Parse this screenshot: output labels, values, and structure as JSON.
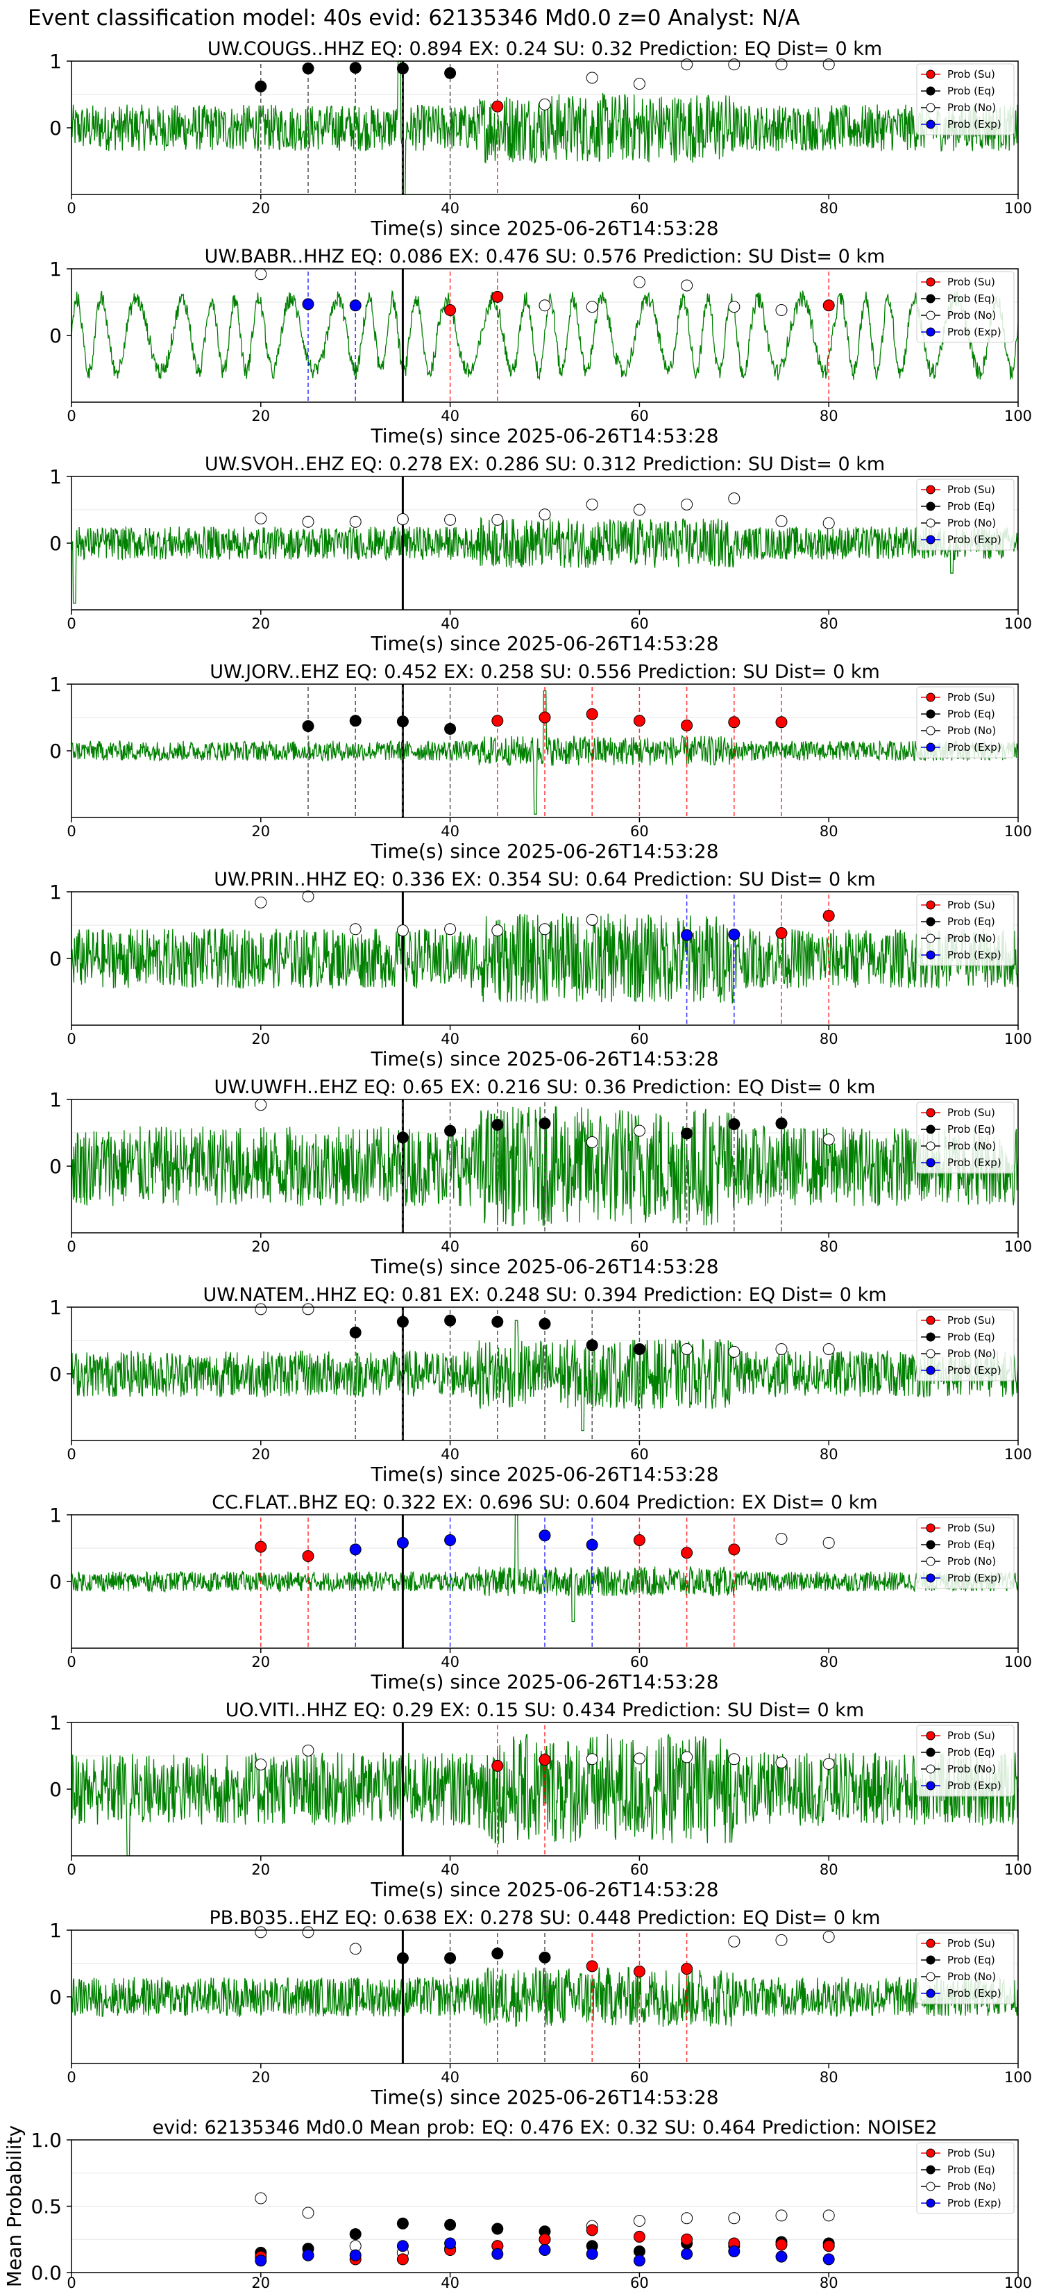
{
  "suptitle": "Event classification model: 40s evid: 62135346 Md0.0 z=0 Analyst: N/A",
  "legend_labels": [
    "Prob (Su)",
    "Prob (Eq)",
    "Prob (No)",
    "Prob (Exp)"
  ],
  "colors": {
    "waveform": "#008000",
    "su": "#ff0000",
    "eq": "#000000",
    "no": "#ffffff",
    "exp": "#0000ff",
    "su_line": "#ff0000",
    "eq_line": "#555555",
    "exp_line": "#0000ff"
  },
  "chart_data": [
    {
      "type": "line",
      "title": "UW.COUGS..HHZ   EQ: 0.894  EX: 0.24  SU: 0.32   Prediction: EQ    Dist= 0 km",
      "xlabel": "Time(s) since 2025-06-26T14:53:28",
      "xlim": [
        0,
        100
      ],
      "ylim": [
        -1,
        1
      ],
      "xticks": [
        0,
        20,
        40,
        60,
        80,
        100
      ],
      "yticks": [
        0,
        1
      ],
      "onset": 35,
      "amp": 0.35,
      "spikes": [
        [
          34.6,
          1.0
        ],
        [
          35.1,
          -1.0
        ]
      ],
      "su": [
        [
          45,
          0.32
        ]
      ],
      "eq": [
        [
          20,
          0.62
        ],
        [
          25,
          0.89
        ],
        [
          30,
          0.9
        ],
        [
          35,
          0.89
        ],
        [
          40,
          0.82
        ]
      ],
      "no": [
        [
          50,
          0.35
        ],
        [
          55,
          0.75
        ],
        [
          60,
          0.66
        ],
        [
          65,
          0.95
        ],
        [
          70,
          0.95
        ],
        [
          75,
          0.95
        ],
        [
          80,
          0.95
        ]
      ],
      "exp": [],
      "eq_lines": [
        20,
        25,
        30,
        35,
        40
      ],
      "su_lines": [
        45
      ],
      "exp_lines": []
    },
    {
      "type": "line",
      "title": "UW.BABR..HHZ   EQ: 0.086  EX: 0.476  SU: 0.576   Prediction: SU    Dist= 0 km",
      "xlabel": "Time(s) since 2025-06-26T14:53:28",
      "xlim": [
        0,
        100
      ],
      "ylim": [
        -1,
        1
      ],
      "xticks": [
        0,
        20,
        40,
        60,
        80,
        100
      ],
      "yticks": [
        0,
        1
      ],
      "onset": 35,
      "amp": 0.7,
      "spikes": [],
      "su": [
        [
          40,
          0.38
        ],
        [
          45,
          0.58
        ],
        [
          80,
          0.45
        ]
      ],
      "eq": [],
      "no": [
        [
          20,
          0.92
        ],
        [
          50,
          0.45
        ],
        [
          55,
          0.43
        ],
        [
          60,
          0.8
        ],
        [
          65,
          0.75
        ],
        [
          70,
          0.43
        ],
        [
          75,
          0.38
        ]
      ],
      "exp": [
        [
          25,
          0.47
        ],
        [
          30,
          0.45
        ]
      ],
      "eq_lines": [],
      "su_lines": [
        40,
        45,
        80
      ],
      "exp_lines": [
        25,
        30
      ]
    },
    {
      "type": "line",
      "title": "UW.SVOH..EHZ   EQ: 0.278  EX: 0.286  SU: 0.312   Prediction: SU    Dist= 0 km",
      "xlabel": "Time(s) since 2025-06-26T14:53:28",
      "xlim": [
        0,
        100
      ],
      "ylim": [
        -1,
        1
      ],
      "xticks": [
        0,
        20,
        40,
        60,
        80,
        100
      ],
      "yticks": [
        0,
        1
      ],
      "onset": 35,
      "amp": 0.25,
      "spikes": [
        [
          0.3,
          -0.9
        ],
        [
          93,
          -0.45
        ]
      ],
      "su": [],
      "eq": [],
      "no": [
        [
          20,
          0.37
        ],
        [
          25,
          0.32
        ],
        [
          30,
          0.32
        ],
        [
          35,
          0.36
        ],
        [
          40,
          0.35
        ],
        [
          45,
          0.35
        ],
        [
          50,
          0.43
        ],
        [
          55,
          0.58
        ],
        [
          60,
          0.5
        ],
        [
          65,
          0.58
        ],
        [
          70,
          0.67
        ],
        [
          75,
          0.33
        ],
        [
          80,
          0.3
        ]
      ],
      "exp": [],
      "eq_lines": [],
      "su_lines": [],
      "exp_lines": []
    },
    {
      "type": "line",
      "title": "UW.JORV..EHZ   EQ: 0.452  EX: 0.258  SU: 0.556   Prediction: SU    Dist= 0 km",
      "xlabel": "Time(s) since 2025-06-26T14:53:28",
      "xlim": [
        0,
        100
      ],
      "ylim": [
        -1,
        1
      ],
      "xticks": [
        0,
        20,
        40,
        60,
        80,
        100
      ],
      "yticks": [
        0,
        1
      ],
      "onset": 35,
      "amp": 0.15,
      "spikes": [
        [
          49,
          -0.95
        ],
        [
          50,
          0.9
        ]
      ],
      "su": [
        [
          45,
          0.45
        ],
        [
          50,
          0.5
        ],
        [
          55,
          0.55
        ],
        [
          60,
          0.45
        ],
        [
          65,
          0.38
        ],
        [
          70,
          0.43
        ],
        [
          75,
          0.43
        ]
      ],
      "eq": [
        [
          25,
          0.37
        ],
        [
          30,
          0.45
        ],
        [
          35,
          0.44
        ],
        [
          40,
          0.33
        ]
      ],
      "no": [],
      "exp": [],
      "eq_lines": [
        25,
        30,
        35,
        40
      ],
      "su_lines": [
        45,
        50,
        55,
        60,
        65,
        70,
        75
      ],
      "exp_lines": []
    },
    {
      "type": "line",
      "title": "UW.PRIN..HHZ   EQ: 0.336  EX: 0.354  SU: 0.64   Prediction: SU    Dist= 0 km",
      "xlabel": "Time(s) since 2025-06-26T14:53:28",
      "xlim": [
        0,
        100
      ],
      "ylim": [
        -1,
        1
      ],
      "xticks": [
        0,
        20,
        40,
        60,
        80,
        100
      ],
      "yticks": [
        0,
        1
      ],
      "onset": 35,
      "amp": 0.45,
      "spikes": [],
      "su": [
        [
          75,
          0.38
        ],
        [
          80,
          0.64
        ]
      ],
      "eq": [],
      "no": [
        [
          20,
          0.84
        ],
        [
          25,
          0.93
        ],
        [
          30,
          0.44
        ],
        [
          35,
          0.42
        ],
        [
          40,
          0.44
        ],
        [
          45,
          0.42
        ],
        [
          50,
          0.44
        ],
        [
          55,
          0.58
        ]
      ],
      "exp": [
        [
          65,
          0.35
        ],
        [
          70,
          0.36
        ]
      ],
      "eq_lines": [],
      "su_lines": [
        75,
        80
      ],
      "exp_lines": [
        65,
        70
      ]
    },
    {
      "type": "line",
      "title": "UW.UWFH..EHZ   EQ: 0.65  EX: 0.216  SU: 0.36   Prediction: EQ    Dist= 0 km",
      "xlabel": "Time(s) since 2025-06-26T14:53:28",
      "xlim": [
        0,
        100
      ],
      "ylim": [
        -1,
        1
      ],
      "xticks": [
        0,
        20,
        40,
        60,
        80,
        100
      ],
      "yticks": [
        0,
        1
      ],
      "onset": 35,
      "amp": 0.6,
      "spikes": [],
      "su": [],
      "eq": [
        [
          35,
          0.43
        ],
        [
          40,
          0.53
        ],
        [
          45,
          0.62
        ],
        [
          50,
          0.64
        ],
        [
          65,
          0.49
        ],
        [
          70,
          0.63
        ],
        [
          75,
          0.64
        ]
      ],
      "no": [
        [
          20,
          0.92
        ],
        [
          55,
          0.36
        ],
        [
          60,
          0.53
        ],
        [
          80,
          0.4
        ]
      ],
      "exp": [],
      "eq_lines": [
        35,
        40,
        45,
        50,
        65,
        70,
        75
      ],
      "su_lines": [],
      "exp_lines": []
    },
    {
      "type": "line",
      "title": "UW.NATEM..HHZ   EQ: 0.81  EX: 0.248  SU: 0.394   Prediction: EQ    Dist= 0 km",
      "xlabel": "Time(s) since 2025-06-26T14:53:28",
      "xlim": [
        0,
        100
      ],
      "ylim": [
        -1,
        1
      ],
      "xticks": [
        0,
        20,
        40,
        60,
        80,
        100
      ],
      "yticks": [
        0,
        1
      ],
      "onset": 35,
      "amp": 0.35,
      "spikes": [
        [
          47,
          0.8
        ],
        [
          54,
          -0.85
        ]
      ],
      "su": [],
      "eq": [
        [
          30,
          0.62
        ],
        [
          35,
          0.78
        ],
        [
          40,
          0.8
        ],
        [
          45,
          0.78
        ],
        [
          50,
          0.75
        ],
        [
          55,
          0.43
        ],
        [
          60,
          0.37
        ]
      ],
      "no": [
        [
          20,
          0.97
        ],
        [
          25,
          0.97
        ],
        [
          65,
          0.37
        ],
        [
          70,
          0.33
        ],
        [
          75,
          0.37
        ],
        [
          80,
          0.37
        ]
      ],
      "exp": [],
      "eq_lines": [
        30,
        35,
        40,
        45,
        50,
        55,
        60
      ],
      "su_lines": [],
      "exp_lines": []
    },
    {
      "type": "line",
      "title": "CC.FLAT..BHZ   EQ: 0.322  EX: 0.696  SU: 0.604   Prediction: EX    Dist= 0 km",
      "xlabel": "Time(s) since 2025-06-26T14:53:28",
      "xlim": [
        0,
        100
      ],
      "ylim": [
        -1,
        1
      ],
      "xticks": [
        0,
        20,
        40,
        60,
        80,
        100
      ],
      "yticks": [
        0,
        1
      ],
      "onset": 35,
      "amp": 0.15,
      "spikes": [
        [
          47,
          1.0
        ],
        [
          53,
          -0.6
        ]
      ],
      "su": [
        [
          20,
          0.52
        ],
        [
          25,
          0.38
        ],
        [
          60,
          0.62
        ],
        [
          65,
          0.43
        ],
        [
          70,
          0.48
        ]
      ],
      "eq": [],
      "no": [
        [
          75,
          0.64
        ],
        [
          80,
          0.58
        ]
      ],
      "exp": [
        [
          30,
          0.48
        ],
        [
          35,
          0.58
        ],
        [
          40,
          0.62
        ],
        [
          50,
          0.69
        ],
        [
          55,
          0.55
        ]
      ],
      "eq_lines": [],
      "su_lines": [
        20,
        25,
        60,
        65,
        70
      ],
      "exp_lines": [
        30,
        40,
        50,
        55
      ]
    },
    {
      "type": "line",
      "title": "UO.VITI..HHZ   EQ: 0.29  EX: 0.15  SU: 0.434   Prediction: SU    Dist= 0 km",
      "xlabel": "Time(s) since 2025-06-26T14:53:28",
      "xlim": [
        0,
        100
      ],
      "ylim": [
        -1,
        1
      ],
      "xticks": [
        0,
        20,
        40,
        60,
        80,
        100
      ],
      "yticks": [
        0,
        1
      ],
      "onset": 35,
      "amp": 0.55,
      "spikes": [
        [
          6,
          -1.0
        ]
      ],
      "su": [
        [
          45,
          0.35
        ],
        [
          50,
          0.44
        ]
      ],
      "eq": [],
      "no": [
        [
          20,
          0.37
        ],
        [
          25,
          0.58
        ],
        [
          55,
          0.45
        ],
        [
          60,
          0.46
        ],
        [
          65,
          0.48
        ],
        [
          70,
          0.45
        ],
        [
          75,
          0.4
        ],
        [
          80,
          0.38
        ]
      ],
      "exp": [],
      "eq_lines": [],
      "su_lines": [
        45,
        50
      ],
      "exp_lines": []
    },
    {
      "type": "line",
      "title": "PB.B035..EHZ   EQ: 0.638  EX: 0.278  SU: 0.448   Prediction: EQ    Dist= 0 km",
      "xlabel": "Time(s) since 2025-06-26T14:53:28",
      "xlim": [
        0,
        100
      ],
      "ylim": [
        -1,
        1
      ],
      "xticks": [
        0,
        20,
        40,
        60,
        80,
        100
      ],
      "yticks": [
        0,
        1
      ],
      "onset": 35,
      "amp": 0.3,
      "spikes": [],
      "su": [
        [
          55,
          0.46
        ],
        [
          60,
          0.38
        ],
        [
          65,
          0.42
        ]
      ],
      "eq": [
        [
          35,
          0.58
        ],
        [
          40,
          0.58
        ],
        [
          45,
          0.65
        ],
        [
          50,
          0.59
        ]
      ],
      "no": [
        [
          20,
          0.97
        ],
        [
          25,
          0.97
        ],
        [
          30,
          0.72
        ],
        [
          70,
          0.83
        ],
        [
          75,
          0.85
        ],
        [
          80,
          0.9
        ]
      ],
      "exp": [],
      "eq_lines": [
        40,
        45,
        50
      ],
      "su_lines": [
        55,
        60,
        65
      ],
      "exp_lines": []
    },
    {
      "type": "scatter",
      "title": "evid: 62135346  Md0.0   Mean prob:   EQ: 0.476  EX: 0.32  SU: 0.464   Prediction: NOISE2",
      "ylabel": "Mean Probability",
      "xlim": [
        0,
        100
      ],
      "ylim": [
        0,
        1
      ],
      "xticks": [
        0,
        20,
        40,
        60,
        80,
        100
      ],
      "yticks": [
        0.0,
        0.5,
        1.0
      ],
      "su": [
        [
          20,
          0.12
        ],
        [
          25,
          0.13
        ],
        [
          30,
          0.1
        ],
        [
          35,
          0.1
        ],
        [
          40,
          0.17
        ],
        [
          45,
          0.2
        ],
        [
          50,
          0.25
        ],
        [
          55,
          0.32
        ],
        [
          60,
          0.27
        ],
        [
          65,
          0.25
        ],
        [
          70,
          0.22
        ],
        [
          75,
          0.21
        ],
        [
          80,
          0.2
        ]
      ],
      "eq": [
        [
          20,
          0.15
        ],
        [
          25,
          0.18
        ],
        [
          30,
          0.29
        ],
        [
          35,
          0.37
        ],
        [
          40,
          0.36
        ],
        [
          45,
          0.33
        ],
        [
          50,
          0.31
        ],
        [
          55,
          0.2
        ],
        [
          60,
          0.16
        ],
        [
          65,
          0.22
        ],
        [
          70,
          0.2
        ],
        [
          75,
          0.23
        ],
        [
          80,
          0.22
        ]
      ],
      "no": [
        [
          20,
          0.56
        ],
        [
          25,
          0.45
        ],
        [
          30,
          0.2
        ],
        [
          35,
          0.15
        ],
        [
          40,
          0.18
        ],
        [
          45,
          0.2
        ],
        [
          50,
          0.25
        ],
        [
          55,
          0.35
        ],
        [
          60,
          0.39
        ],
        [
          65,
          0.41
        ],
        [
          70,
          0.41
        ],
        [
          75,
          0.43
        ],
        [
          80,
          0.43
        ]
      ],
      "exp": [
        [
          20,
          0.09
        ],
        [
          25,
          0.13
        ],
        [
          30,
          0.13
        ],
        [
          35,
          0.2
        ],
        [
          40,
          0.22
        ],
        [
          45,
          0.14
        ],
        [
          50,
          0.17
        ],
        [
          55,
          0.14
        ],
        [
          60,
          0.09
        ],
        [
          65,
          0.14
        ],
        [
          70,
          0.16
        ],
        [
          75,
          0.12
        ],
        [
          80,
          0.1
        ]
      ]
    }
  ]
}
